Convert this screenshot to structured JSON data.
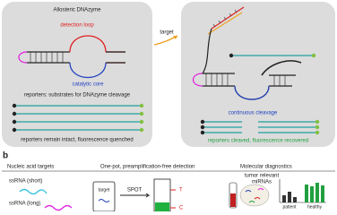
{
  "panel_a": {
    "left": {
      "title": "Allosteric DNAzyme",
      "loop_label": "detection loop",
      "core_label": "catalytic core",
      "reporters_label": "reporters: substrates for DNAzyme cleavage",
      "state_label": "reporters remain intact, fluorescence quenched"
    },
    "arrow_label": "target",
    "right": {
      "cleavage_label": "continuous cleavage",
      "state_label": "reporters cleaved, fluorescence recovered"
    }
  },
  "panel_b": {
    "label": "b",
    "targets": {
      "header": "Nucleic acid targets",
      "items": [
        "ssRNA (short)",
        "ssRNA (long)"
      ]
    },
    "detection": {
      "header": "One-pot, preamplification-free detection",
      "tube_label": "target",
      "arrow_label": "SPOT",
      "strip_labels": [
        "T",
        "C"
      ]
    },
    "diagnostics": {
      "header": "Molecular diagnostics",
      "cloud_label": [
        "tumor relevant",
        "miRNAs"
      ],
      "groups": [
        "patient",
        "healthy"
      ]
    }
  }
}
